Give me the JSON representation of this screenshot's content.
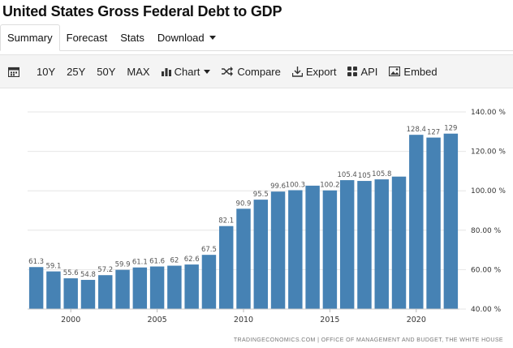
{
  "title": "United States Gross Federal Debt to GDP",
  "tabs": [
    {
      "label": "Summary"
    },
    {
      "label": "Forecast"
    },
    {
      "label": "Stats"
    },
    {
      "label": "Download"
    }
  ],
  "toolbar": {
    "range_10y": "10Y",
    "range_25y": "25Y",
    "range_50y": "50Y",
    "range_max": "MAX",
    "chart": "Chart",
    "compare": "Compare",
    "export": "Export",
    "api": "API",
    "embed": "Embed"
  },
  "colors": {
    "bar": "#4682b4",
    "grid": "#e6e6e6"
  },
  "source": "TRADINGECONOMICS.COM | OFFICE OF MANAGEMENT AND BUDGET, THE WHITE HOUSE",
  "chart_data": {
    "type": "bar",
    "categories": [
      1998,
      1999,
      2000,
      2001,
      2002,
      2003,
      2004,
      2005,
      2006,
      2007,
      2008,
      2009,
      2010,
      2011,
      2012,
      2013,
      2014,
      2015,
      2016,
      2017,
      2018,
      2019,
      2020,
      2021,
      2022
    ],
    "values": [
      61.3,
      59.1,
      55.6,
      54.8,
      57.2,
      59.9,
      61.1,
      61.6,
      62,
      62.6,
      67.5,
      82.1,
      90.9,
      95.5,
      99.6,
      100.3,
      102.6,
      100.2,
      105.4,
      105,
      105.8,
      107.2,
      128.4,
      127,
      129
    ],
    "data_labels": [
      "61.3",
      "59.1",
      "55.6",
      "54.8",
      "57.2",
      "59.9",
      "61.1",
      "61.6",
      "62",
      "62.6",
      "67.5",
      "82.1",
      "90.9",
      "95.5",
      "99.6",
      "100.3",
      "",
      "100.2",
      "105.4",
      "105",
      "105.8",
      "",
      "128.4",
      "127",
      "129"
    ],
    "x_tick_labels": [
      "2000",
      "2005",
      "2010",
      "2015",
      "2020"
    ],
    "y_tick_labels": [
      "40.00 %",
      "60.00 %",
      "80.00 %",
      "100.00 %",
      "120.00 %",
      "140.00 %"
    ],
    "y_ticks": [
      40,
      60,
      80,
      100,
      120,
      140
    ],
    "ylim": [
      40,
      140
    ],
    "y_axis_side": "right",
    "grid": true
  }
}
